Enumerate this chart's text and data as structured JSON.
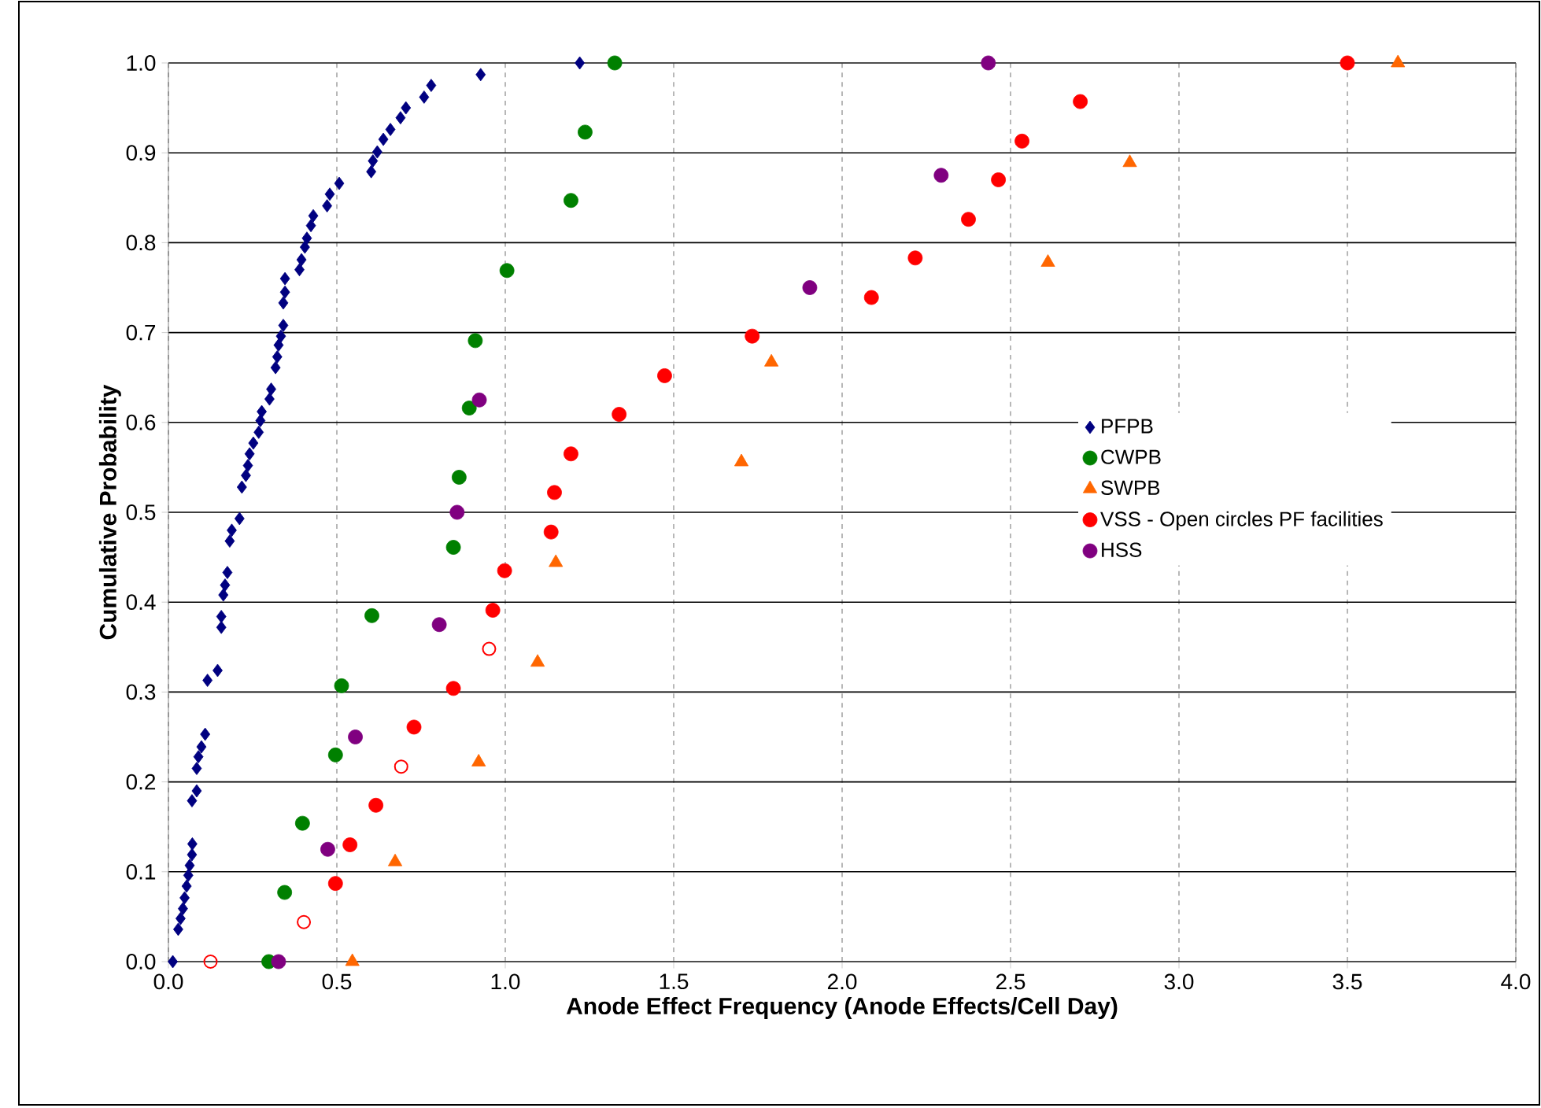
{
  "chart_data": {
    "type": "scatter",
    "xlabel": "Anode Effect Frequency (Anode Effects/Cell Day)",
    "ylabel": "Cumulative Probability",
    "xlim": [
      0,
      4
    ],
    "ylim": [
      0,
      1
    ],
    "xticks": [
      {
        "value": 0,
        "label": "0.0"
      },
      {
        "value": 0.5,
        "label": "0.5"
      },
      {
        "value": 1,
        "label": "1.0"
      },
      {
        "value": 1.5,
        "label": "1.5"
      },
      {
        "value": 2,
        "label": "2.0"
      },
      {
        "value": 2.5,
        "label": "2.5"
      },
      {
        "value": 3,
        "label": "3.0"
      },
      {
        "value": 3.5,
        "label": "3.5"
      },
      {
        "value": 4,
        "label": "4.0"
      }
    ],
    "yticks": [
      {
        "value": 0,
        "label": "0.0"
      },
      {
        "value": 0.1,
        "label": "0.1"
      },
      {
        "value": 0.2,
        "label": "0.2"
      },
      {
        "value": 0.3,
        "label": "0.3"
      },
      {
        "value": 0.4,
        "label": "0.4"
      },
      {
        "value": 0.5,
        "label": "0.5"
      },
      {
        "value": 0.6,
        "label": "0.6"
      },
      {
        "value": 0.7,
        "label": "0.7"
      },
      {
        "value": 0.8,
        "label": "0.8"
      },
      {
        "value": 0.9,
        "label": "0.9"
      },
      {
        "value": 1,
        "label": "1.0"
      }
    ],
    "grid": true,
    "legend": "right",
    "series": [
      {
        "name": "PFPB",
        "color": "#000080",
        "marker": "diamond",
        "x": [
          0.013,
          0.029,
          0.036,
          0.043,
          0.048,
          0.054,
          0.059,
          0.063,
          0.07,
          0.071,
          0.07,
          0.084,
          0.084,
          0.089,
          0.098,
          0.109,
          0.116,
          0.146,
          0.157,
          0.157,
          0.163,
          0.168,
          0.175,
          0.182,
          0.188,
          0.211,
          0.218,
          0.23,
          0.236,
          0.241,
          0.252,
          0.268,
          0.273,
          0.277,
          0.3,
          0.305,
          0.318,
          0.323,
          0.327,
          0.334,
          0.341,
          0.341,
          0.346,
          0.346,
          0.389,
          0.395,
          0.405,
          0.411,
          0.423,
          0.43,
          0.471,
          0.479,
          0.507,
          0.602,
          0.607,
          0.62,
          0.638,
          0.659,
          0.689,
          0.705,
          0.759,
          0.78,
          0.927,
          1.221
        ],
        "values": [
          0,
          0.036,
          0.048,
          0.059,
          0.071,
          0.084,
          0.096,
          0.107,
          0.119,
          0.131,
          0.179,
          0.19,
          0.215,
          0.228,
          0.239,
          0.253,
          0.313,
          0.324,
          0.372,
          0.384,
          0.408,
          0.419,
          0.433,
          0.468,
          0.48,
          0.493,
          0.528,
          0.541,
          0.552,
          0.565,
          0.577,
          0.589,
          0.602,
          0.612,
          0.626,
          0.637,
          0.661,
          0.673,
          0.686,
          0.696,
          0.708,
          0.733,
          0.745,
          0.76,
          0.77,
          0.781,
          0.795,
          0.805,
          0.819,
          0.83,
          0.841,
          0.854,
          0.866,
          0.879,
          0.891,
          0.901,
          0.915,
          0.926,
          0.939,
          0.95,
          0.962,
          0.975,
          0.987,
          1.0
        ]
      },
      {
        "name": "CWPB",
        "color": "#008000",
        "marker": "circle",
        "x": [
          0.298,
          0.345,
          0.398,
          0.496,
          0.514,
          0.604,
          0.846,
          0.863,
          0.893,
          0.911,
          1.005,
          1.195,
          1.237,
          1.325
        ],
        "values": [
          0,
          0.077,
          0.154,
          0.23,
          0.307,
          0.385,
          0.461,
          0.539,
          0.616,
          0.691,
          0.769,
          0.847,
          0.923,
          1.0
        ]
      },
      {
        "name": "SWPB",
        "color": "#ff6600",
        "marker": "triangle",
        "x": [
          0.546,
          0.673,
          0.921,
          1.096,
          1.15,
          1.701,
          1.79,
          2.611,
          2.854,
          3.65
        ],
        "values": [
          0,
          0.111,
          0.222,
          0.333,
          0.444,
          0.556,
          0.667,
          0.778,
          0.889,
          1.0
        ]
      },
      {
        "name": "VSS - Open circles PF facilities",
        "color": "#ff0000",
        "marker": "circle",
        "x": [
          0.496,
          0.539,
          0.616,
          0.729,
          0.846,
          0.963,
          0.998,
          1.136,
          1.146,
          1.195,
          1.338,
          1.473,
          1.733,
          2.087,
          2.217,
          2.375,
          2.464,
          2.534,
          2.707,
          3.5
        ],
        "values": [
          0.087,
          0.13,
          0.174,
          0.261,
          0.304,
          0.391,
          0.435,
          0.478,
          0.522,
          0.565,
          0.609,
          0.652,
          0.696,
          0.739,
          0.783,
          0.826,
          0.87,
          0.913,
          0.957,
          1.0
        ]
      },
      {
        "name": "HSS",
        "color": "#800080",
        "marker": "circle",
        "x": [
          0.327,
          0.473,
          0.555,
          0.804,
          0.857,
          0.923,
          1.904,
          2.294,
          2.434
        ],
        "values": [
          0,
          0.125,
          0.25,
          0.375,
          0.5,
          0.625,
          0.75,
          0.875,
          1.0
        ]
      },
      {
        "color": "#ff0000",
        "marker": "open circle",
        "x": [
          0.125,
          0.402,
          0.691,
          0.952
        ],
        "values": [
          0,
          0.044,
          0.217,
          0.348
        ]
      }
    ]
  }
}
